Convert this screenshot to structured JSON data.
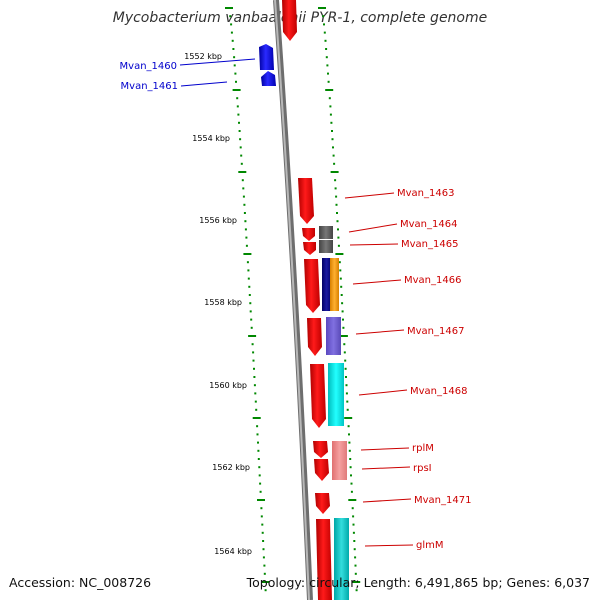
{
  "title": "Mycobacterium vanbaalenii PYR-1, complete genome",
  "accession": "Accession: NC_008726",
  "topology": "Topology: circular; Length: 6,491,865 bp; Genes: 6,037",
  "scale_labels": [
    "1552 kbp",
    "1554 kbp",
    "1556 kbp",
    "1558 kbp",
    "1560 kbp",
    "1562 kbp",
    "1564 kbp"
  ],
  "genes_left": [
    {
      "label": "Mvan_1460",
      "color": "#0000cc"
    },
    {
      "label": "Mvan_1461",
      "color": "#0000cc"
    }
  ],
  "genes_right": [
    {
      "label": "Mvan_1463",
      "color": "#cc0000"
    },
    {
      "label": "Mvan_1464",
      "color": "#cc0000"
    },
    {
      "label": "Mvan_1465",
      "color": "#cc0000"
    },
    {
      "label": "Mvan_1466",
      "color": "#cc0000"
    },
    {
      "label": "Mvan_1467",
      "color": "#cc0000"
    },
    {
      "label": "Mvan_1468",
      "color": "#cc0000"
    },
    {
      "label": "rplM",
      "color": "#cc0000"
    },
    {
      "label": "rpsI",
      "color": "#cc0000"
    },
    {
      "label": "Mvan_1471",
      "color": "#cc0000"
    },
    {
      "label": "glmM",
      "color": "#cc0000"
    }
  ],
  "colors": {
    "forward_strand": "#ee0000",
    "reverse_strand": "#0000ee",
    "tick": "#008800",
    "backbone": "#888888"
  }
}
